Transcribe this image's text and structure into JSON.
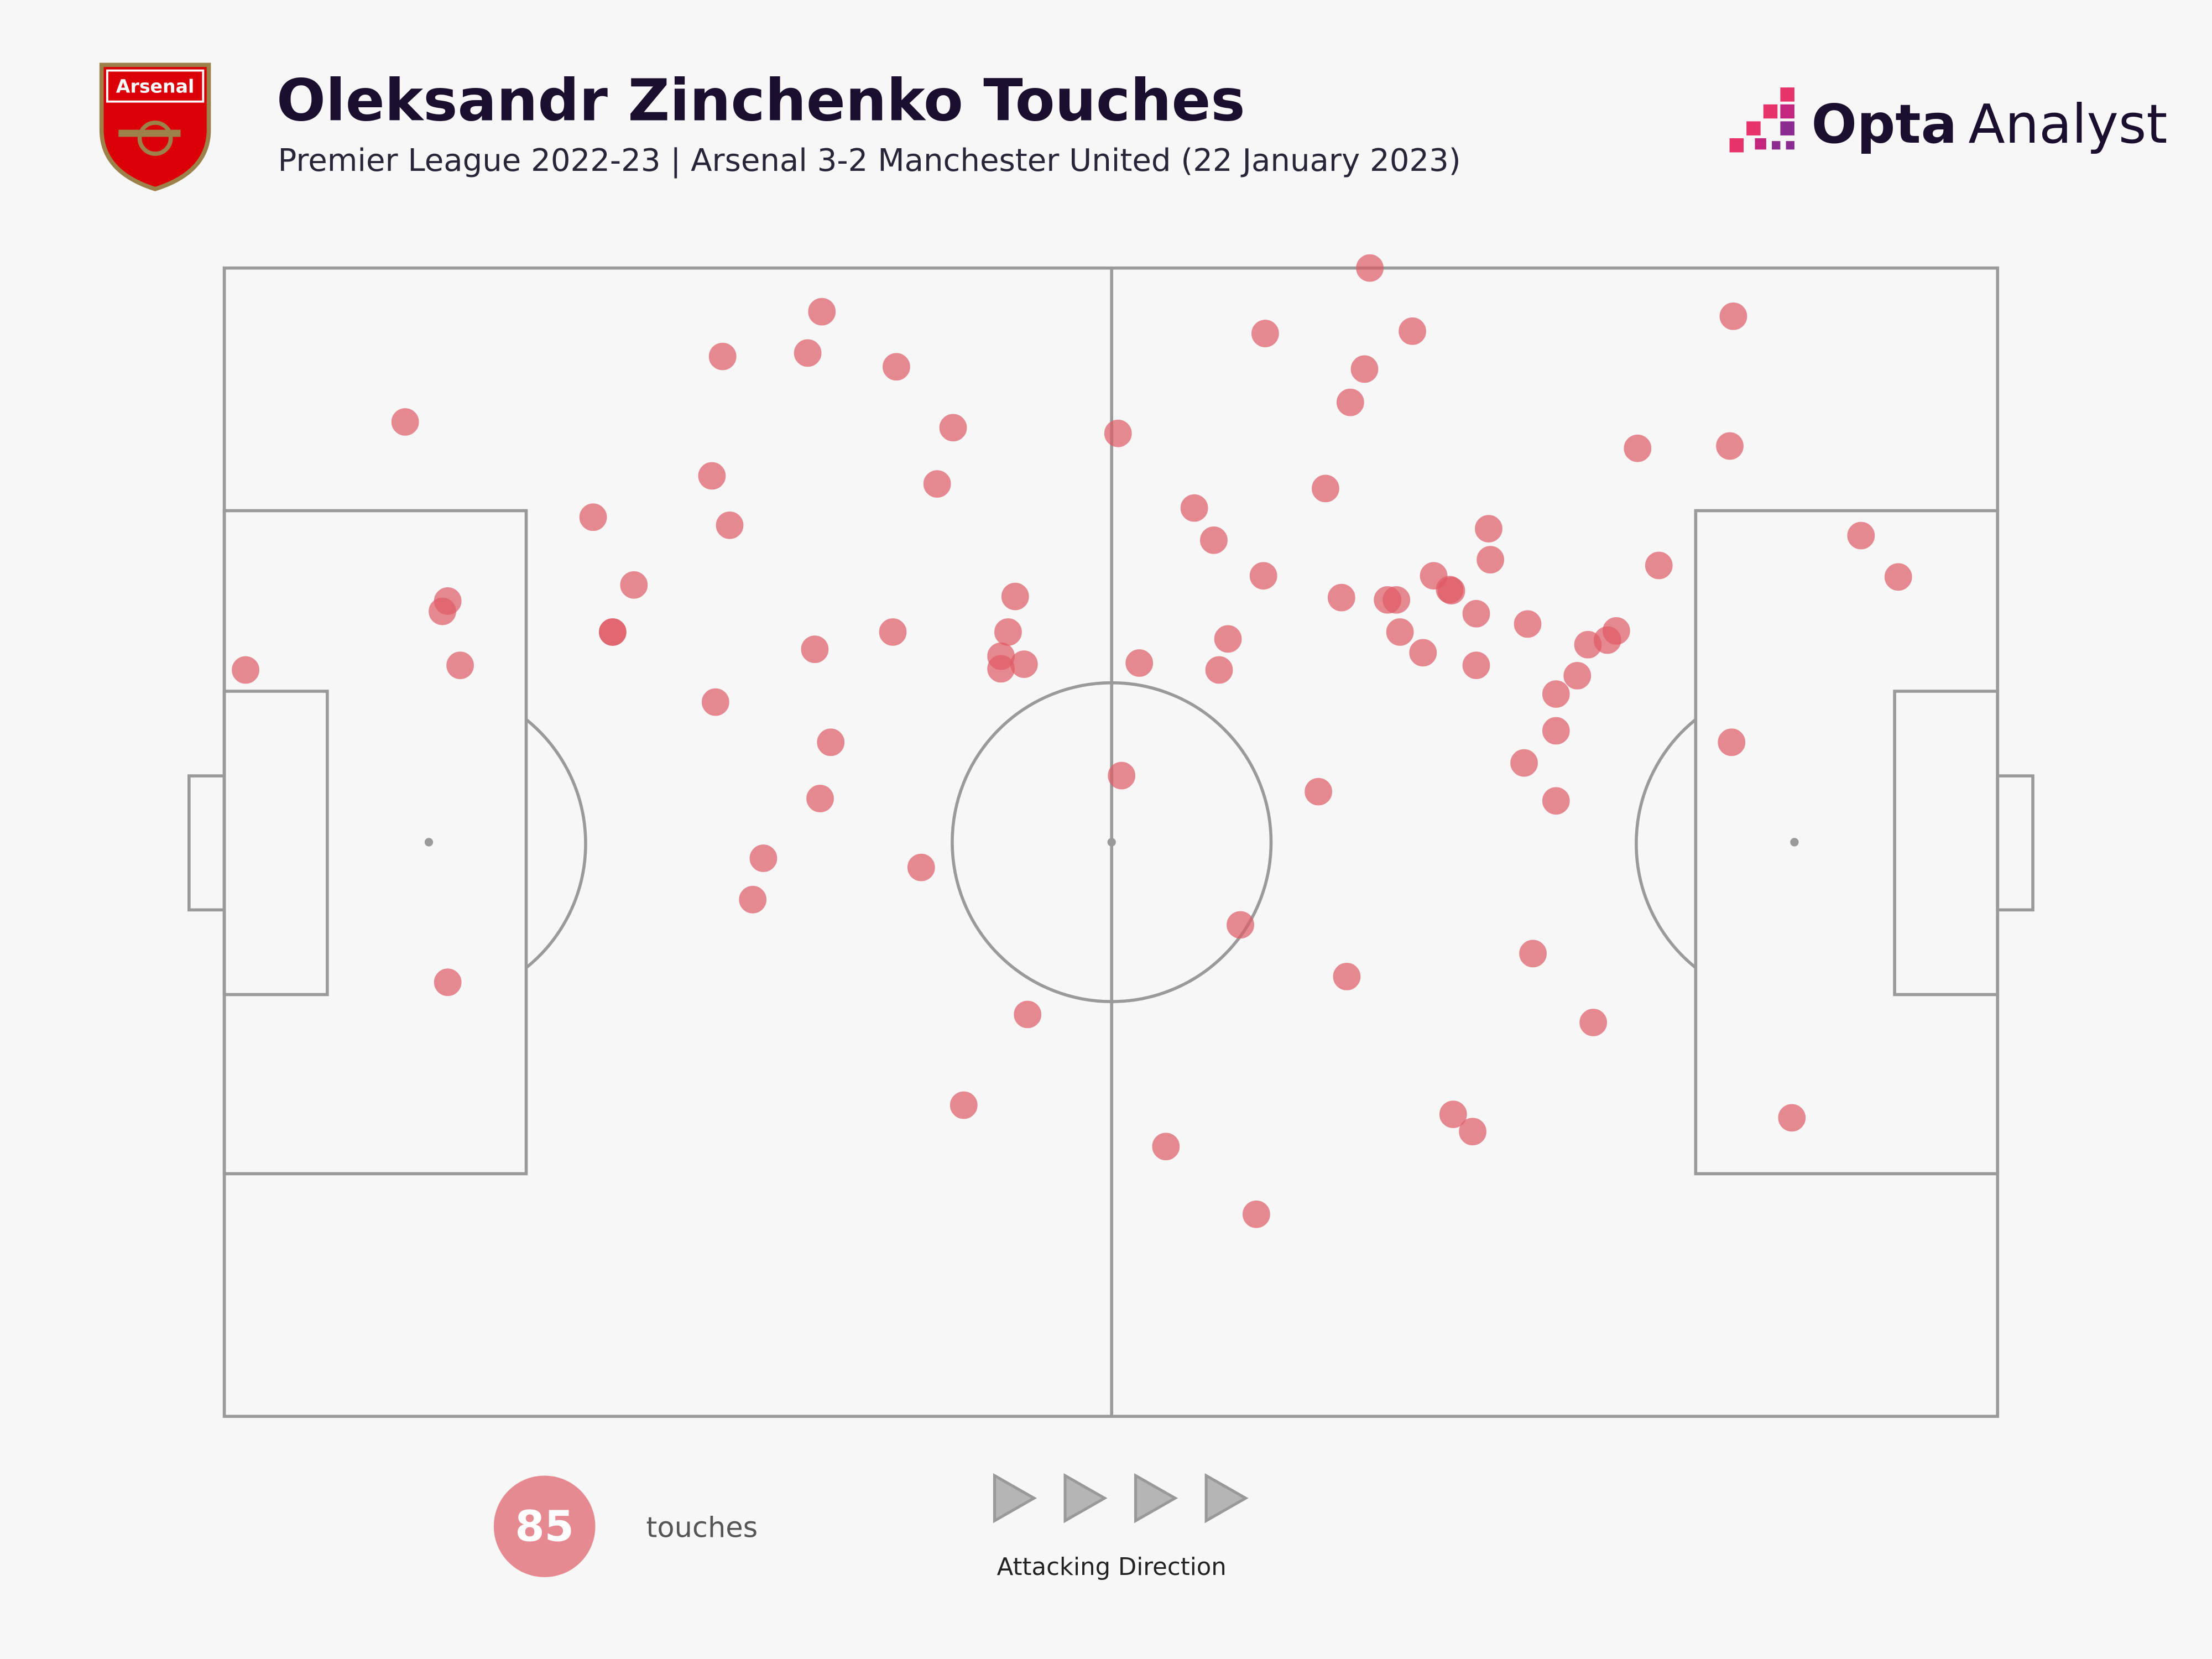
{
  "chart_data": {
    "type": "scatter",
    "title": "Oleksandr Zinchenko Touches",
    "subtitle": "Premier League 2022-23 | Arsenal 3-2 Manchester United (22 January 2023)",
    "xlim": [
      0,
      100
    ],
    "ylim": [
      0,
      100
    ],
    "series": [
      {
        "name": "touches",
        "color": "#e05a64",
        "x": [
          1.2,
          10.2,
          12.6,
          12.3,
          13.3,
          12.6,
          20.8,
          23.1,
          21.9,
          21.9,
          27.5,
          28.5,
          28.1,
          32.9,
          33.7,
          37.9,
          41.1,
          40.2,
          27.7,
          33.3,
          37.7,
          34.2,
          33.6,
          30.4,
          29.8,
          39.3,
          44.6,
          44.2,
          43.8,
          43.8,
          45.1,
          45.3,
          41.7,
          50.4,
          51.6,
          50.6,
          53.1,
          58.2,
          57.3,
          54.7,
          55.8,
          58.6,
          56.6,
          56.1,
          58.7,
          64.6,
          67.0,
          64.3,
          63.5,
          62.1,
          63.0,
          65.6,
          66.1,
          66.3,
          68.2,
          69.1,
          69.2,
          67.6,
          70.6,
          70.6,
          71.3,
          71.4,
          73.5,
          61.7,
          63.3,
          69.3,
          70.4,
          73.8,
          77.2,
          75.1,
          75.1,
          73.3,
          75.1,
          76.3,
          76.9,
          78.0,
          78.5,
          79.7,
          80.9,
          84.9,
          85.1,
          85.0,
          88.4,
          92.3,
          94.4
        ],
        "y": [
          65.0,
          86.6,
          71.0,
          70.1,
          65.4,
          37.8,
          78.3,
          72.4,
          68.3,
          68.3,
          81.9,
          77.6,
          92.3,
          92.6,
          96.2,
          91.4,
          86.1,
          81.2,
          62.2,
          66.8,
          68.3,
          58.7,
          53.8,
          48.6,
          45.0,
          47.8,
          71.4,
          68.3,
          66.2,
          65.1,
          65.5,
          35.0,
          27.1,
          85.6,
          65.6,
          55.8,
          23.5,
          17.6,
          42.8,
          79.1,
          76.3,
          73.2,
          67.7,
          65.0,
          94.3,
          100.0,
          94.5,
          91.2,
          88.3,
          80.8,
          71.3,
          71.1,
          71.1,
          68.3,
          73.2,
          72.0,
          71.9,
          66.5,
          69.9,
          65.4,
          77.3,
          74.6,
          69.0,
          54.4,
          38.3,
          26.3,
          24.8,
          40.3,
          34.3,
          62.9,
          59.7,
          56.9,
          53.6,
          64.5,
          67.2,
          67.6,
          68.4,
          84.3,
          74.1,
          84.5,
          95.8,
          58.7,
          26.0,
          76.7,
          73.1
        ]
      }
    ],
    "count": 85,
    "direction_label": "Attacking Direction"
  },
  "branding": {
    "badge": "Arsenal",
    "brand": "Opta",
    "suffix": "Analyst"
  }
}
